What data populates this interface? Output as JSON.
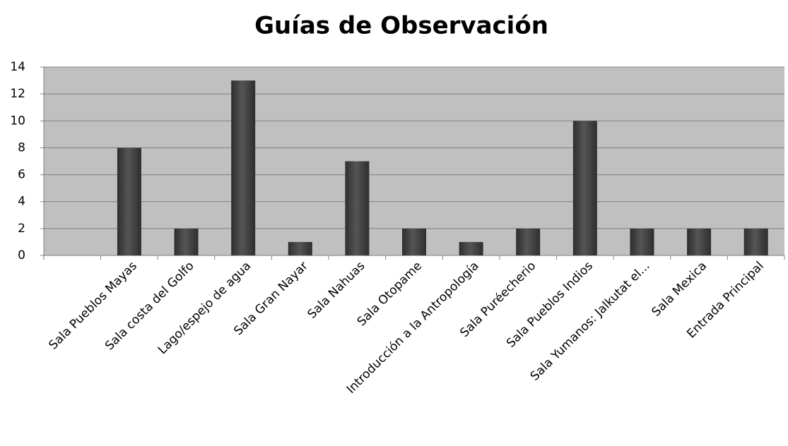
{
  "chart_data": {
    "type": "bar",
    "title": "Guías de Observación",
    "categories": [
      null,
      "Sala Pueblos Mayas",
      "Sala costa del Golfo",
      "Lago/espejo de agua",
      "Sala Gran Nayar",
      "Sala Nahuas",
      "Sala Otopame",
      "Introducción a la Antropología",
      "Sala Puréecherio",
      "Sala Pueblos Indios",
      "Sala Yumanos: Jalkutat el...",
      "Sala Mexica",
      "Entrada Principal"
    ],
    "values": [
      null,
      8,
      2,
      13,
      1,
      7,
      2,
      1,
      2,
      10,
      2,
      2,
      2
    ],
    "color": "#555555",
    "ylim": [
      0,
      14
    ],
    "yticks": [
      0,
      2,
      4,
      6,
      8,
      10,
      12,
      14
    ],
    "grid": true
  }
}
